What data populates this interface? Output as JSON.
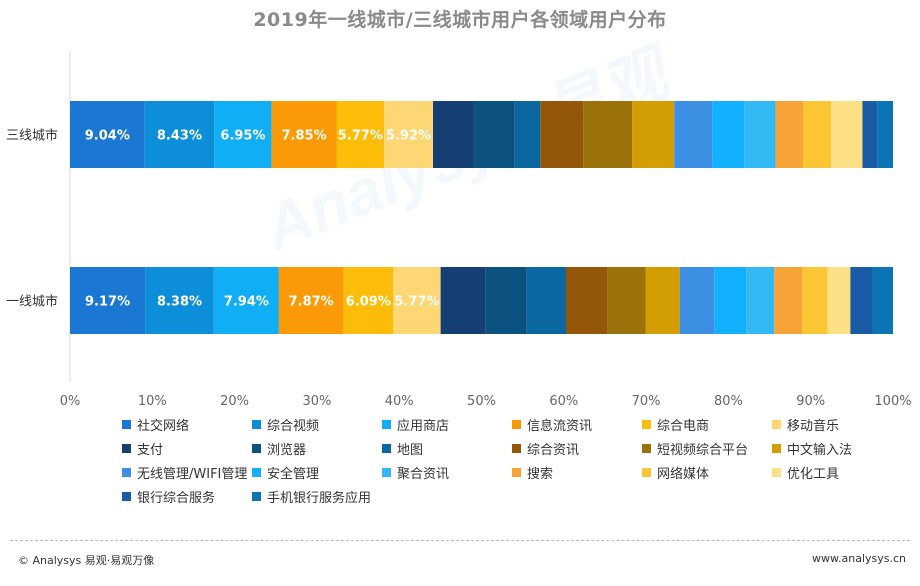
{
  "chart_data": {
    "type": "bar",
    "orientation": "horizontal-stacked-100",
    "title": "2019年一线城市/三线城市用户各领域用户分布",
    "categories": [
      "三线城市",
      "一线城市"
    ],
    "xlim": [
      0,
      100
    ],
    "x_ticks": [
      "0%",
      "10%",
      "20%",
      "30%",
      "40%",
      "50%",
      "60%",
      "70%",
      "80%",
      "90%",
      "100%"
    ],
    "legend_position": "bottom",
    "series": [
      {
        "name": "社交网络",
        "color": "#1a78d3",
        "values": [
          9.04,
          9.17
        ],
        "labels": [
          "9.04%",
          "9.17%"
        ]
      },
      {
        "name": "综合视频",
        "color": "#0d8ed8",
        "values": [
          8.43,
          8.38
        ],
        "labels": [
          "8.43%",
          "8.38%"
        ]
      },
      {
        "name": "应用商店",
        "color": "#10aef5",
        "values": [
          6.95,
          7.94
        ],
        "labels": [
          "6.95%",
          "7.94%"
        ]
      },
      {
        "name": "信息流资讯",
        "color": "#fa9a06",
        "values": [
          7.85,
          7.87
        ],
        "labels": [
          "7.85%",
          "7.87%"
        ]
      },
      {
        "name": "综合电商",
        "color": "#fbbd0a",
        "values": [
          5.77,
          6.09
        ],
        "labels": [
          "5.77%",
          "6.09%"
        ]
      },
      {
        "name": "移动音乐",
        "color": "#fdd774",
        "values": [
          5.92,
          5.77
        ],
        "labels": [
          "5.92%",
          "5.77%"
        ]
      },
      {
        "name": "支付",
        "color": "#153f73",
        "values": [
          4.9,
          5.5
        ]
      },
      {
        "name": "浏览器",
        "color": "#0c5280",
        "values": [
          5.0,
          5.0
        ]
      },
      {
        "name": "地图",
        "color": "#0b679f",
        "values": [
          3.1,
          4.8
        ]
      },
      {
        "name": "综合资讯",
        "color": "#94570a",
        "values": [
          5.2,
          5.1
        ]
      },
      {
        "name": "短视频综合平台",
        "color": "#9b7109",
        "values": [
          5.9,
          4.6
        ]
      },
      {
        "name": "中文输入法",
        "color": "#d29e04",
        "values": [
          5.1,
          4.2
        ]
      },
      {
        "name": "无线管理/WIFI管理",
        "color": "#3c8fe3",
        "values": [
          4.6,
          4.2
        ]
      },
      {
        "name": "安全管理",
        "color": "#13b0ff",
        "values": [
          3.9,
          3.9
        ]
      },
      {
        "name": "聚合资讯",
        "color": "#32b8f2",
        "values": [
          3.8,
          3.4
        ]
      },
      {
        "name": "搜索",
        "color": "#f6a437",
        "values": [
          3.3,
          3.4
        ]
      },
      {
        "name": "网络媒体",
        "color": "#fbc634",
        "values": [
          3.4,
          3.1
        ]
      },
      {
        "name": "优化工具",
        "color": "#fde085",
        "values": [
          3.8,
          2.8
        ]
      },
      {
        "name": "银行综合服务",
        "color": "#1a5ba6",
        "values": [
          1.8,
          2.7
        ]
      },
      {
        "name": "手机银行服务应用",
        "color": "#0a74b5",
        "values": [
          1.9,
          2.5
        ]
      }
    ]
  },
  "footer": {
    "left": "© Analysys 易观·易观万像",
    "right": "www.analysys.cn"
  },
  "watermark": "Analysys 易观"
}
